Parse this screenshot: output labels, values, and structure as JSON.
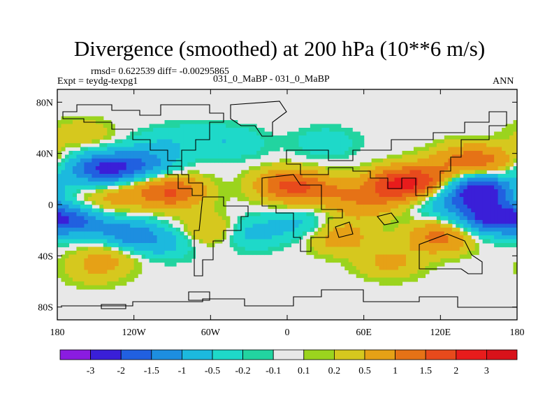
{
  "title": "Divergence (smoothed) at 200 hPa (10**6 m/s)",
  "stats": "rmsd= 0.622539 diff= -0.00295865",
  "expt": "Expt = teydg-texpg1",
  "case": "031_0_MaBP - 031_0_MaBP",
  "period": "ANN",
  "chart_data": {
    "type": "heatmap",
    "title": "Divergence (smoothed) at 200 hPa (10**6 m/s)",
    "x_ticks": [
      {
        "value": -180,
        "label": "180"
      },
      {
        "value": -120,
        "label": "120W"
      },
      {
        "value": -60,
        "label": "60W"
      },
      {
        "value": 0,
        "label": "0"
      },
      {
        "value": 60,
        "label": "60E"
      },
      {
        "value": 120,
        "label": "120E"
      },
      {
        "value": 180,
        "label": "180"
      }
    ],
    "y_ticks": [
      {
        "value": 80,
        "label": "80N"
      },
      {
        "value": 40,
        "label": "40N"
      },
      {
        "value": 0,
        "label": "0"
      },
      {
        "value": -40,
        "label": "40S"
      },
      {
        "value": -80,
        "label": "80S"
      }
    ],
    "xlim": [
      -180,
      180
    ],
    "ylim": [
      -90,
      90
    ],
    "colorbar": {
      "labels": [
        "-3",
        "-2",
        "-1.5",
        "-1",
        "-0.5",
        "-0.2",
        "-0.1",
        "0.1",
        "0.2",
        "0.5",
        "1",
        "1.5",
        "2",
        "3"
      ],
      "colors": [
        "#8a1ce0",
        "#3a1fd8",
        "#2160e0",
        "#1d8ee0",
        "#1cb9de",
        "#1ed9c9",
        "#22d4a0",
        "#e8e8e8",
        "#9bd41e",
        "#d6c81e",
        "#e6a116",
        "#e67216",
        "#e84a1c",
        "#e81c1c",
        "#d9121a"
      ]
    },
    "features": [
      {
        "lon": -140,
        "lat": 28,
        "value": -2.0
      },
      {
        "lon": -110,
        "lat": 32,
        "value": -1.0
      },
      {
        "lon": -170,
        "lat": 28,
        "value": -0.6
      },
      {
        "lon": -165,
        "lat": -12,
        "value": -1.6
      },
      {
        "lon": -125,
        "lat": -25,
        "value": -1.5
      },
      {
        "lon": -95,
        "lat": -30,
        "value": -0.6
      },
      {
        "lon": -30,
        "lat": -22,
        "value": -0.7
      },
      {
        "lon": 10,
        "lat": -15,
        "value": -0.6
      },
      {
        "lon": 150,
        "lat": 12,
        "value": -2.5
      },
      {
        "lon": 160,
        "lat": -10,
        "value": -2.2
      },
      {
        "lon": 125,
        "lat": 0,
        "value": -0.7
      },
      {
        "lon": -40,
        "lat": 48,
        "value": -0.4
      },
      {
        "lon": 30,
        "lat": 48,
        "value": -0.4
      },
      {
        "lon": -100,
        "lat": 48,
        "value": -0.3
      },
      {
        "lon": -70,
        "lat": 52,
        "value": -0.3
      },
      {
        "lon": -90,
        "lat": 10,
        "value": 1.5
      },
      {
        "lon": -125,
        "lat": 10,
        "value": 0.6
      },
      {
        "lon": -150,
        "lat": 0,
        "value": 0.5
      },
      {
        "lon": 0,
        "lat": 15,
        "value": 1.5
      },
      {
        "lon": 30,
        "lat": 10,
        "value": 0.8
      },
      {
        "lon": 60,
        "lat": 0,
        "value": 0.7
      },
      {
        "lon": 85,
        "lat": 15,
        "value": 1.8
      },
      {
        "lon": 110,
        "lat": 20,
        "value": 1.2
      },
      {
        "lon": 140,
        "lat": 35,
        "value": 1.0
      },
      {
        "lon": 165,
        "lat": 32,
        "value": 0.8
      },
      {
        "lon": 120,
        "lat": -25,
        "value": 1.2
      },
      {
        "lon": 40,
        "lat": -25,
        "value": 0.8
      },
      {
        "lon": -60,
        "lat": -20,
        "value": 0.7
      },
      {
        "lon": -150,
        "lat": -50,
        "value": 0.5
      },
      {
        "lon": 80,
        "lat": -45,
        "value": 0.6
      },
      {
        "lon": -160,
        "lat": 55,
        "value": 0.4
      },
      {
        "lon": -135,
        "lat": -35,
        "value": 0.7
      }
    ]
  }
}
